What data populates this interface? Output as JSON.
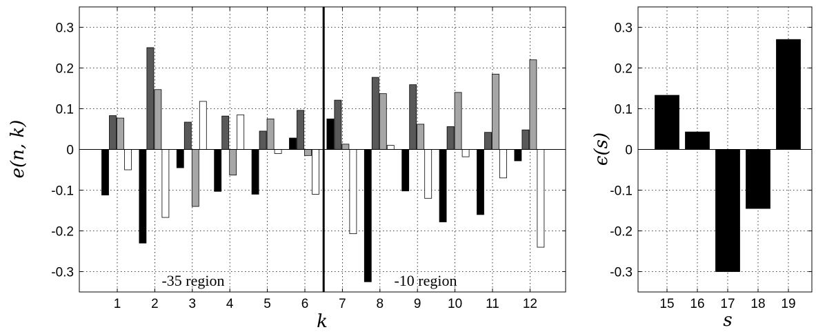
{
  "chart_data": [
    {
      "type": "bar",
      "xlabel": "e(n, k) vs k",
      "xlabel_text": "k",
      "ylabel_text": "e(n, k)",
      "ylim": [
        -0.35,
        0.35
      ],
      "yticks": [
        "0.3",
        "0.2",
        "0.1",
        "0",
        "-0.1",
        "-0.2",
        "-0.3"
      ],
      "ytick_values": [
        0.3,
        0.2,
        0.1,
        0,
        -0.1,
        -0.2,
        -0.3
      ],
      "categories": [
        "1",
        "2",
        "3",
        "4",
        "5",
        "6",
        "7",
        "8",
        "9",
        "10",
        "11",
        "12"
      ],
      "series": [
        {
          "color": "#000000",
          "values": [
            -0.112,
            -0.23,
            -0.045,
            -0.103,
            -0.11,
            0.028,
            0.075,
            -0.325,
            -0.102,
            -0.178,
            -0.16,
            -0.028
          ]
        },
        {
          "color": "#595959",
          "values": [
            0.083,
            0.25,
            0.067,
            0.082,
            0.045,
            0.096,
            0.121,
            0.177,
            0.159,
            0.056,
            0.042,
            0.048
          ]
        },
        {
          "color": "#a6a6a6",
          "values": [
            0.077,
            0.147,
            -0.14,
            -0.063,
            0.075,
            -0.015,
            0.013,
            0.137,
            0.062,
            0.14,
            0.185,
            0.22
          ]
        },
        {
          "color": "#ffffff",
          "values": [
            -0.05,
            -0.167,
            0.118,
            0.085,
            -0.01,
            -0.11,
            -0.207,
            0.01,
            -0.12,
            -0.018,
            -0.07,
            -0.24
          ]
        }
      ],
      "divider_after_category": "6",
      "annotations": [
        "-35 region",
        "-10 region"
      ],
      "grid": true
    },
    {
      "type": "bar",
      "xlabel_text": "s",
      "ylabel_text": "ϵ(s)",
      "ylim": [
        -0.35,
        0.35
      ],
      "yticks": [
        "0.3",
        "0.2",
        "0.1",
        "0",
        "-0.1",
        "-0.2",
        "-0.3"
      ],
      "ytick_values": [
        0.3,
        0.2,
        0.1,
        0,
        -0.1,
        -0.2,
        -0.3
      ],
      "categories": [
        "15",
        "16",
        "17",
        "18",
        "19"
      ],
      "series": [
        {
          "color": "#000000",
          "values": [
            0.133,
            0.043,
            -0.3,
            -0.145,
            0.27
          ]
        }
      ],
      "grid": true
    }
  ]
}
